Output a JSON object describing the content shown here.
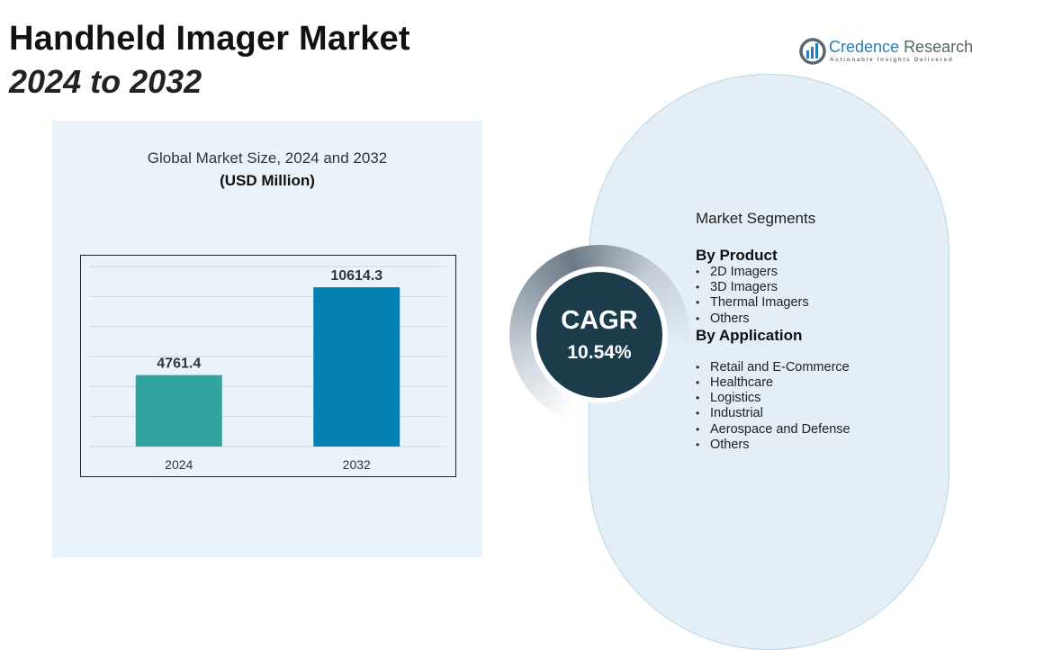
{
  "title": {
    "line1": "Handheld Imager Market",
    "line2": "2024 to 2032"
  },
  "logo": {
    "name_main": "Credence",
    "name_rest": "Research",
    "tagline": "Actionable Insights Delivered"
  },
  "chart_data": {
    "type": "bar",
    "title": "Global Market Size, 2024 and 2032",
    "subtitle": "(USD Million)",
    "categories": [
      "2024",
      "2032"
    ],
    "values": [
      4761.4,
      10614.3
    ],
    "value_labels": [
      "4761.4",
      "10614.3"
    ],
    "colors": [
      "#32a39f",
      "#0481b3"
    ],
    "ylim": [
      0,
      12000
    ],
    "grid": true,
    "xlabel": "",
    "ylabel": ""
  },
  "cagr": {
    "label": "CAGR",
    "value": "10.54%"
  },
  "segments": {
    "heading": "Market Segments",
    "groups": [
      {
        "title": "By Product",
        "items": [
          "2D Imagers",
          "3D Imagers",
          "Thermal Imagers",
          "Others"
        ]
      },
      {
        "title": "By Application",
        "items": [
          "Retail and E-Commerce",
          "Healthcare",
          "Logistics",
          "Industrial",
          "Aerospace and Defense",
          "Others"
        ]
      }
    ]
  }
}
